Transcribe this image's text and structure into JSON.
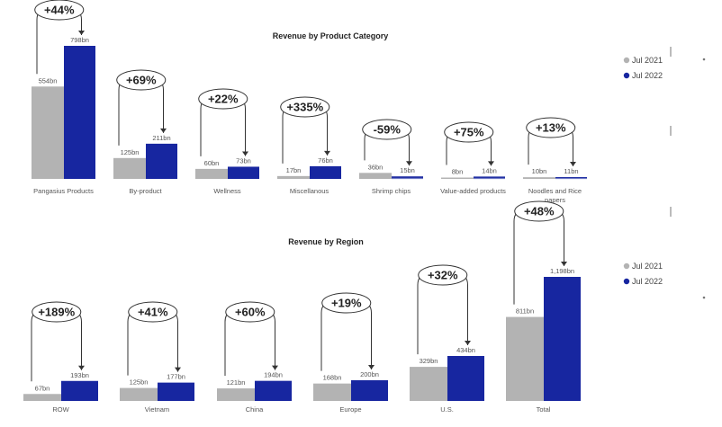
{
  "chart_data": [
    {
      "type": "bar",
      "title": "Revenue by Product Category",
      "categories": [
        "Pangasius Products",
        "By-product",
        "Wellness",
        "Miscellanous",
        "Shrimp chips",
        "Value-added products",
        "Noodles and Rice papers"
      ],
      "series": [
        {
          "name": "Jul 2021",
          "values": [
            554,
            125,
            60,
            17,
            36,
            8,
            10
          ],
          "labels": [
            "554bn",
            "125bn",
            "60bn",
            "17bn",
            "36bn",
            "8bn",
            "10bn"
          ]
        },
        {
          "name": "Jul 2022",
          "values": [
            798,
            211,
            73,
            76,
            15,
            14,
            11
          ],
          "labels": [
            "798bn",
            "211bn",
            "73bn",
            "76bn",
            "15bn",
            "14bn",
            "11bn"
          ]
        }
      ],
      "growth_labels": [
        "+44%",
        "+69%",
        "+22%",
        "+335%",
        "-59%",
        "+75%",
        "+13%"
      ],
      "unit": "bn",
      "legend_position": "right",
      "grid": false
    },
    {
      "type": "bar",
      "title": "Revenue by Region",
      "categories": [
        "ROW",
        "Vietnam",
        "China",
        "Europe",
        "U.S.",
        "Total"
      ],
      "series": [
        {
          "name": "Jul 2021",
          "values": [
            67,
            125,
            121,
            168,
            329,
            811
          ],
          "labels": [
            "67bn",
            "125bn",
            "121bn",
            "168bn",
            "329bn",
            "811bn"
          ]
        },
        {
          "name": "Jul 2022",
          "values": [
            193,
            177,
            194,
            200,
            434,
            1198
          ],
          "labels": [
            "193bn",
            "177bn",
            "194bn",
            "200bn",
            "434bn",
            "1,198bn"
          ]
        }
      ],
      "growth_labels": [
        "+189%",
        "+41%",
        "+60%",
        "+19%",
        "+32%",
        "+48%"
      ],
      "unit": "bn",
      "legend_position": "right",
      "grid": false
    }
  ],
  "colors": {
    "jul2021": "#b3b3b3",
    "jul2022": "#1726a0",
    "baseline": "#6d77c4",
    "annotation": "#333333"
  }
}
